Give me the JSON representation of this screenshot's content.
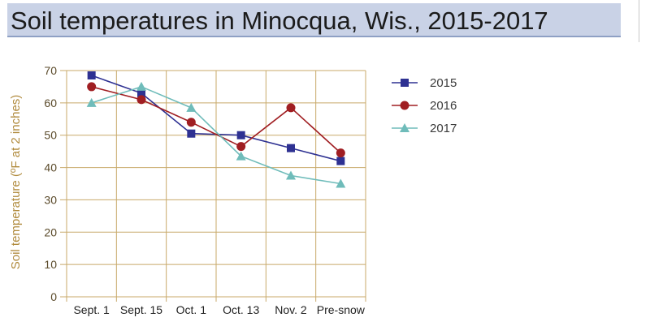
{
  "header": {
    "title": "Soil temperatures in Minocqua, Wis., 2015-2017"
  },
  "colors": {
    "title_bg": "#c9d2e6",
    "grid": "#c8a96a",
    "series_2015": "#2e3192",
    "series_2016": "#a01e22",
    "series_2017": "#6fbcba"
  },
  "chart_data": {
    "type": "line",
    "title": "Soil temperatures in Minocqua, Wis., 2015-2017",
    "xlabel": "",
    "ylabel": "Soil temperature (ºF at 2 inches)",
    "categories": [
      "Sept. 1",
      "Sept. 15",
      "Oct. 1",
      "Oct. 13",
      "Nov. 2",
      "Pre-snow"
    ],
    "ylim": [
      0,
      70
    ],
    "yticks": [
      0,
      10,
      20,
      30,
      40,
      50,
      60,
      70
    ],
    "grid": true,
    "legend_position": "right",
    "series": [
      {
        "name": "2015",
        "marker": "square",
        "color": "#2e3192",
        "values": [
          68.5,
          63,
          50.5,
          50,
          46,
          42
        ]
      },
      {
        "name": "2016",
        "marker": "circle",
        "color": "#a01e22",
        "values": [
          65,
          61,
          54,
          46.5,
          58.5,
          44.5
        ]
      },
      {
        "name": "2017",
        "marker": "triangle",
        "color": "#6fbcba",
        "values": [
          60,
          65,
          58.5,
          43.5,
          37.5,
          35
        ]
      }
    ]
  }
}
